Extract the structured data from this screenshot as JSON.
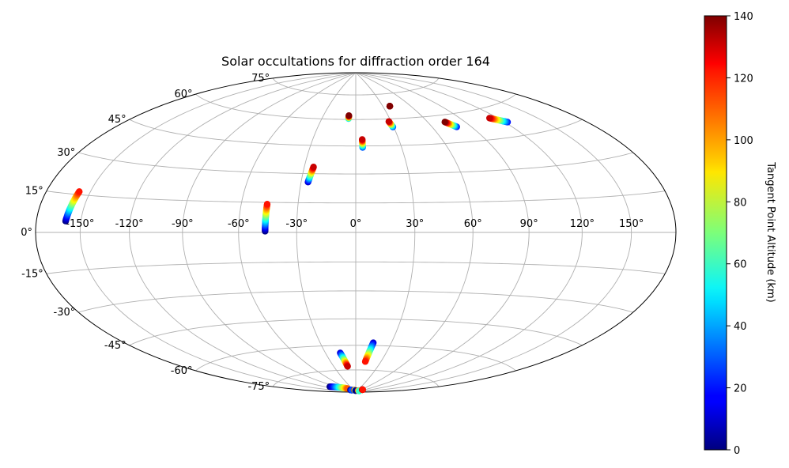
{
  "chart_data": {
    "type": "scatter",
    "projection": "hammer",
    "title": "Solar occultations for diffraction order 164",
    "longitude_ticks": [
      {
        "value": -150,
        "label": "-150°"
      },
      {
        "value": -120,
        "label": "-120°"
      },
      {
        "value": -90,
        "label": "-90°"
      },
      {
        "value": -60,
        "label": "-60°"
      },
      {
        "value": -30,
        "label": "-30°"
      },
      {
        "value": 0,
        "label": "0°"
      },
      {
        "value": 30,
        "label": "30°"
      },
      {
        "value": 60,
        "label": "60°"
      },
      {
        "value": 90,
        "label": "90°"
      },
      {
        "value": 120,
        "label": "120°"
      },
      {
        "value": 150,
        "label": "150°"
      }
    ],
    "latitude_ticks": [
      {
        "value": 75,
        "label": "75°"
      },
      {
        "value": 60,
        "label": "60°"
      },
      {
        "value": 45,
        "label": "45°"
      },
      {
        "value": 30,
        "label": "30°"
      },
      {
        "value": 15,
        "label": "15°"
      },
      {
        "value": 0,
        "label": "0°"
      },
      {
        "value": -15,
        "label": "-15°"
      },
      {
        "value": -30,
        "label": "-30°"
      },
      {
        "value": -45,
        "label": "-45°"
      },
      {
        "value": -60,
        "label": "-60°"
      },
      {
        "value": -75,
        "label": "-75°"
      }
    ],
    "grid": true,
    "colorbar": {
      "label": "Tangent Point Altitude (km)",
      "colormap": "jet",
      "range": [
        0,
        140
      ],
      "ticks": [
        {
          "value": 0,
          "label": "0"
        },
        {
          "value": 20,
          "label": "20"
        },
        {
          "value": 40,
          "label": "40"
        },
        {
          "value": 60,
          "label": "60"
        },
        {
          "value": 80,
          "label": "80"
        },
        {
          "value": 100,
          "label": "100"
        },
        {
          "value": 120,
          "label": "120"
        },
        {
          "value": 140,
          "label": "140"
        }
      ]
    },
    "tracks": [
      {
        "lon_start": -159.9,
        "lat_start": 4.4,
        "alt_start": 0,
        "lon_end": -157.3,
        "lat_end": 16.2,
        "alt_end": 120
      },
      {
        "lon_start": -46.2,
        "lat_start": 0.6,
        "alt_start": 0,
        "lon_end": -46.2,
        "lat_end": 14.1,
        "alt_end": 120
      },
      {
        "lon_start": -26.2,
        "lat_start": 25.6,
        "alt_start": 10,
        "lon_end": -24.6,
        "lat_end": 33.5,
        "alt_end": 130
      },
      {
        "lon_start": -6.4,
        "lat_start": 60.5,
        "alt_start": 50,
        "lon_end": -6.4,
        "lat_end": 62.3,
        "alt_end": 140
      },
      {
        "lon_start": 4.5,
        "lat_start": 44.2,
        "alt_start": 30,
        "lon_end": 4.5,
        "lat_end": 48.6,
        "alt_end": 130
      },
      {
        "lon_start": 37.7,
        "lat_start": 67.4,
        "alt_start": 130,
        "lon_end": 37.7,
        "lat_end": 67.4,
        "alt_end": 140
      },
      {
        "lon_start": 29.4,
        "lat_start": 55.3,
        "alt_start": 30,
        "lon_end": 28.1,
        "lat_end": 58.5,
        "alt_end": 130
      },
      {
        "lon_start": 78.9,
        "lat_start": 53.1,
        "alt_start": 20,
        "lon_end": 73.9,
        "lat_end": 56.2,
        "alt_end": 140
      },
      {
        "lon_start": 122.2,
        "lat_start": 51.9,
        "alt_start": 20,
        "lon_end": 113.6,
        "lat_end": 55.1,
        "alt_end": 130
      },
      {
        "lon_start": -15.4,
        "lat_start": -64.4,
        "alt_start": 10,
        "lon_end": -11.2,
        "lat_end": -72.7,
        "alt_end": 130
      },
      {
        "lon_start": 14.8,
        "lat_start": -58.4,
        "alt_start": 10,
        "lon_end": 11.4,
        "lat_end": -69.7,
        "alt_end": 120
      },
      {
        "lon_start": -108.8,
        "lat_start": -84.1,
        "alt_start": 0,
        "lon_end": -62.5,
        "lat_end": -87.1,
        "alt_end": 110
      },
      {
        "lon_start": -64.0,
        "lat_start": -88.2,
        "alt_start": 0,
        "lon_end": -52.2,
        "lat_end": -88.5,
        "alt_end": 30
      },
      {
        "lon_start": -19.4,
        "lat_start": -88.5,
        "alt_start": 130,
        "lon_end": 0.0,
        "lat_end": -89.0,
        "alt_end": 0
      },
      {
        "lon_start": 43.0,
        "lat_start": -88.8,
        "alt_start": 120,
        "lon_end": 76.0,
        "lat_end": -89.0,
        "alt_end": 60
      },
      {
        "lon_start": 68.0,
        "lat_start": -87.9,
        "alt_start": 140,
        "lon_end": 74.0,
        "lat_end": -87.9,
        "alt_end": 120
      }
    ]
  }
}
